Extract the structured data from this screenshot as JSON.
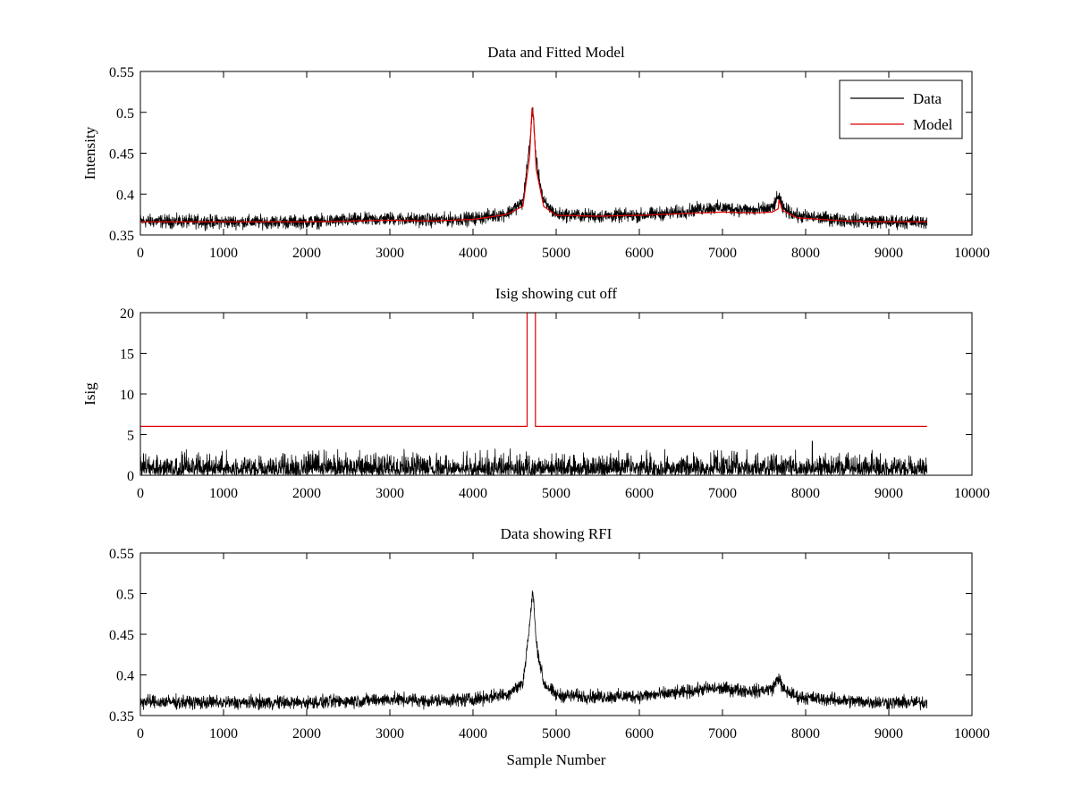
{
  "figure": {
    "window_title": "Data and Fitted Model / Isig showing cut off / Data showing RFI"
  },
  "chart_data": [
    {
      "type": "line",
      "title": "Data and Fitted Model",
      "xlabel": "",
      "ylabel": "Intensity",
      "xlim": [
        0,
        10000
      ],
      "ylim": [
        0.35,
        0.55
      ],
      "xticks": [
        0,
        1000,
        2000,
        3000,
        4000,
        5000,
        6000,
        7000,
        8000,
        9000,
        10000
      ],
      "yticks": [
        0.35,
        0.4,
        0.45,
        0.5,
        0.55
      ],
      "ytick_labels": [
        "0.35",
        "0.4",
        "0.45",
        "0.5",
        "0.55"
      ],
      "legend": {
        "position": "top-right",
        "entries": [
          "Data",
          "Model"
        ]
      },
      "series": [
        {
          "name": "Data",
          "color": "#000000",
          "kind": "noisy",
          "noise_amplitude": 0.004,
          "x": [
            0,
            1000,
            2000,
            2800,
            3000,
            3500,
            4000,
            4400,
            4600,
            4680,
            4720,
            4760,
            4850,
            5000,
            5500,
            6000,
            6500,
            6800,
            7000,
            7400,
            7600,
            7680,
            7720,
            7900,
            8500,
            9000,
            9460
          ],
          "y": [
            0.367,
            0.366,
            0.366,
            0.369,
            0.37,
            0.368,
            0.37,
            0.376,
            0.39,
            0.46,
            0.505,
            0.44,
            0.39,
            0.375,
            0.373,
            0.374,
            0.378,
            0.383,
            0.383,
            0.38,
            0.383,
            0.398,
            0.383,
            0.373,
            0.368,
            0.366,
            0.366
          ]
        },
        {
          "name": "Model",
          "color": "#e00000",
          "kind": "smooth",
          "x": [
            0,
            1000,
            2000,
            3000,
            3500,
            4000,
            4400,
            4600,
            4680,
            4710,
            4730,
            4760,
            4850,
            5000,
            5500,
            6000,
            6500,
            7000,
            7400,
            7600,
            7670,
            7680,
            7720,
            7900,
            8500,
            9000,
            9460
          ],
          "y": [
            0.366,
            0.366,
            0.366,
            0.368,
            0.367,
            0.369,
            0.375,
            0.385,
            0.445,
            0.505,
            0.49,
            0.43,
            0.385,
            0.374,
            0.373,
            0.374,
            0.376,
            0.378,
            0.377,
            0.378,
            0.382,
            0.393,
            0.38,
            0.371,
            0.367,
            0.366,
            0.366
          ]
        }
      ]
    },
    {
      "type": "line",
      "title": "Isig showing cut off",
      "xlabel": "",
      "ylabel": "Isig",
      "xlim": [
        0,
        10000
      ],
      "ylim": [
        0,
        20
      ],
      "xticks": [
        0,
        1000,
        2000,
        3000,
        4000,
        5000,
        6000,
        7000,
        8000,
        9000,
        10000
      ],
      "yticks": [
        0,
        5,
        10,
        15,
        20
      ],
      "ytick_labels": [
        "0",
        "5",
        "10",
        "15",
        "20"
      ],
      "series": [
        {
          "name": "Isig",
          "color": "#000000",
          "kind": "spiky",
          "x_range": [
            0,
            9460
          ],
          "typical_max": 2.5,
          "peak": 4.2
        },
        {
          "name": "Cutoff",
          "color": "#e00000",
          "kind": "step",
          "x": [
            0,
            4650,
            4650,
            4750,
            4750,
            9460
          ],
          "y": [
            6,
            6,
            20,
            20,
            6,
            6
          ]
        }
      ]
    },
    {
      "type": "line",
      "title": "Data showing RFI",
      "xlabel": "Sample Number",
      "ylabel": "",
      "xlim": [
        0,
        10000
      ],
      "ylim": [
        0.35,
        0.55
      ],
      "xticks": [
        0,
        1000,
        2000,
        3000,
        4000,
        5000,
        6000,
        7000,
        8000,
        9000,
        10000
      ],
      "yticks": [
        0.35,
        0.4,
        0.45,
        0.5,
        0.55
      ],
      "ytick_labels": [
        "0.35",
        "0.4",
        "0.45",
        "0.5",
        "0.55"
      ],
      "series": [
        {
          "name": "Data",
          "color": "#000000",
          "kind": "noisy",
          "noise_amplitude": 0.004,
          "x": [
            0,
            1000,
            2000,
            2800,
            3000,
            3500,
            4000,
            4400,
            4600,
            4680,
            4720,
            4760,
            4850,
            5000,
            5500,
            6000,
            6500,
            6800,
            7000,
            7400,
            7600,
            7680,
            7720,
            7900,
            8500,
            9000,
            9460
          ],
          "y": [
            0.367,
            0.366,
            0.366,
            0.369,
            0.37,
            0.368,
            0.37,
            0.376,
            0.39,
            0.46,
            0.505,
            0.44,
            0.39,
            0.375,
            0.373,
            0.374,
            0.378,
            0.383,
            0.383,
            0.38,
            0.383,
            0.398,
            0.383,
            0.373,
            0.368,
            0.366,
            0.366
          ]
        }
      ]
    }
  ]
}
